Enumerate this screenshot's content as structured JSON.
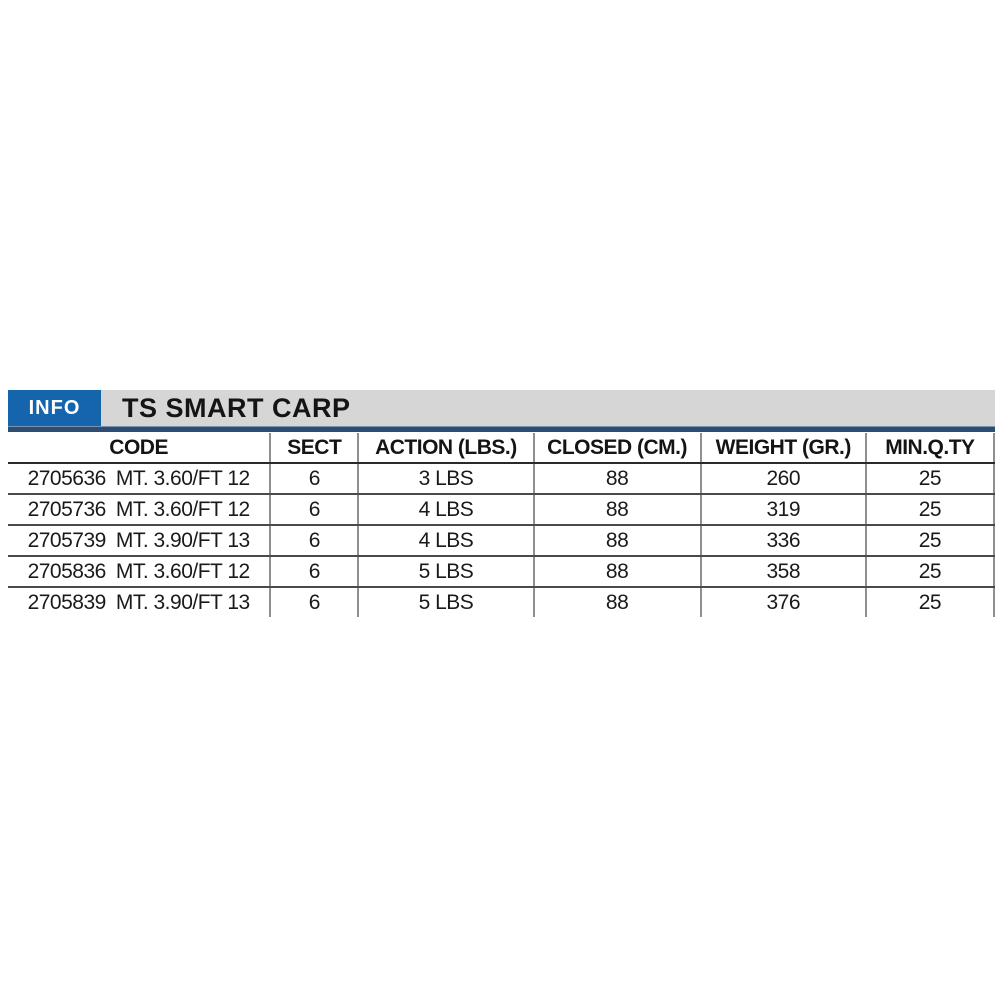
{
  "header": {
    "badge": "INFO",
    "title": "TS SMART CARP"
  },
  "table": {
    "columns": [
      "CODE",
      "SECT",
      "ACTION (LBS.)",
      "CLOSED (CM.)",
      "WEIGHT (GR.)",
      "MIN.Q.TY"
    ],
    "rows": [
      {
        "code": "2705636",
        "size": "MT. 3.60/FT 12",
        "sect": "6",
        "action": "3 LBS",
        "closed": "88",
        "weight": "260",
        "minqty": "25"
      },
      {
        "code": "2705736",
        "size": "MT. 3.60/FT 12",
        "sect": "6",
        "action": "4 LBS",
        "closed": "88",
        "weight": "319",
        "minqty": "25"
      },
      {
        "code": "2705739",
        "size": "MT. 3.90/FT 13",
        "sect": "6",
        "action": "4 LBS",
        "closed": "88",
        "weight": "336",
        "minqty": "25"
      },
      {
        "code": "2705836",
        "size": "MT. 3.60/FT 12",
        "sect": "6",
        "action": "5 LBS",
        "closed": "88",
        "weight": "358",
        "minqty": "25"
      },
      {
        "code": "2705839",
        "size": "MT. 3.90/FT 13",
        "sect": "6",
        "action": "5 LBS",
        "closed": "88",
        "weight": "376",
        "minqty": "25"
      }
    ]
  },
  "colors": {
    "badge_blue": "#1565ac",
    "titlebar_gray": "#d6d6d6",
    "navy_rule": "#2d4d73"
  }
}
